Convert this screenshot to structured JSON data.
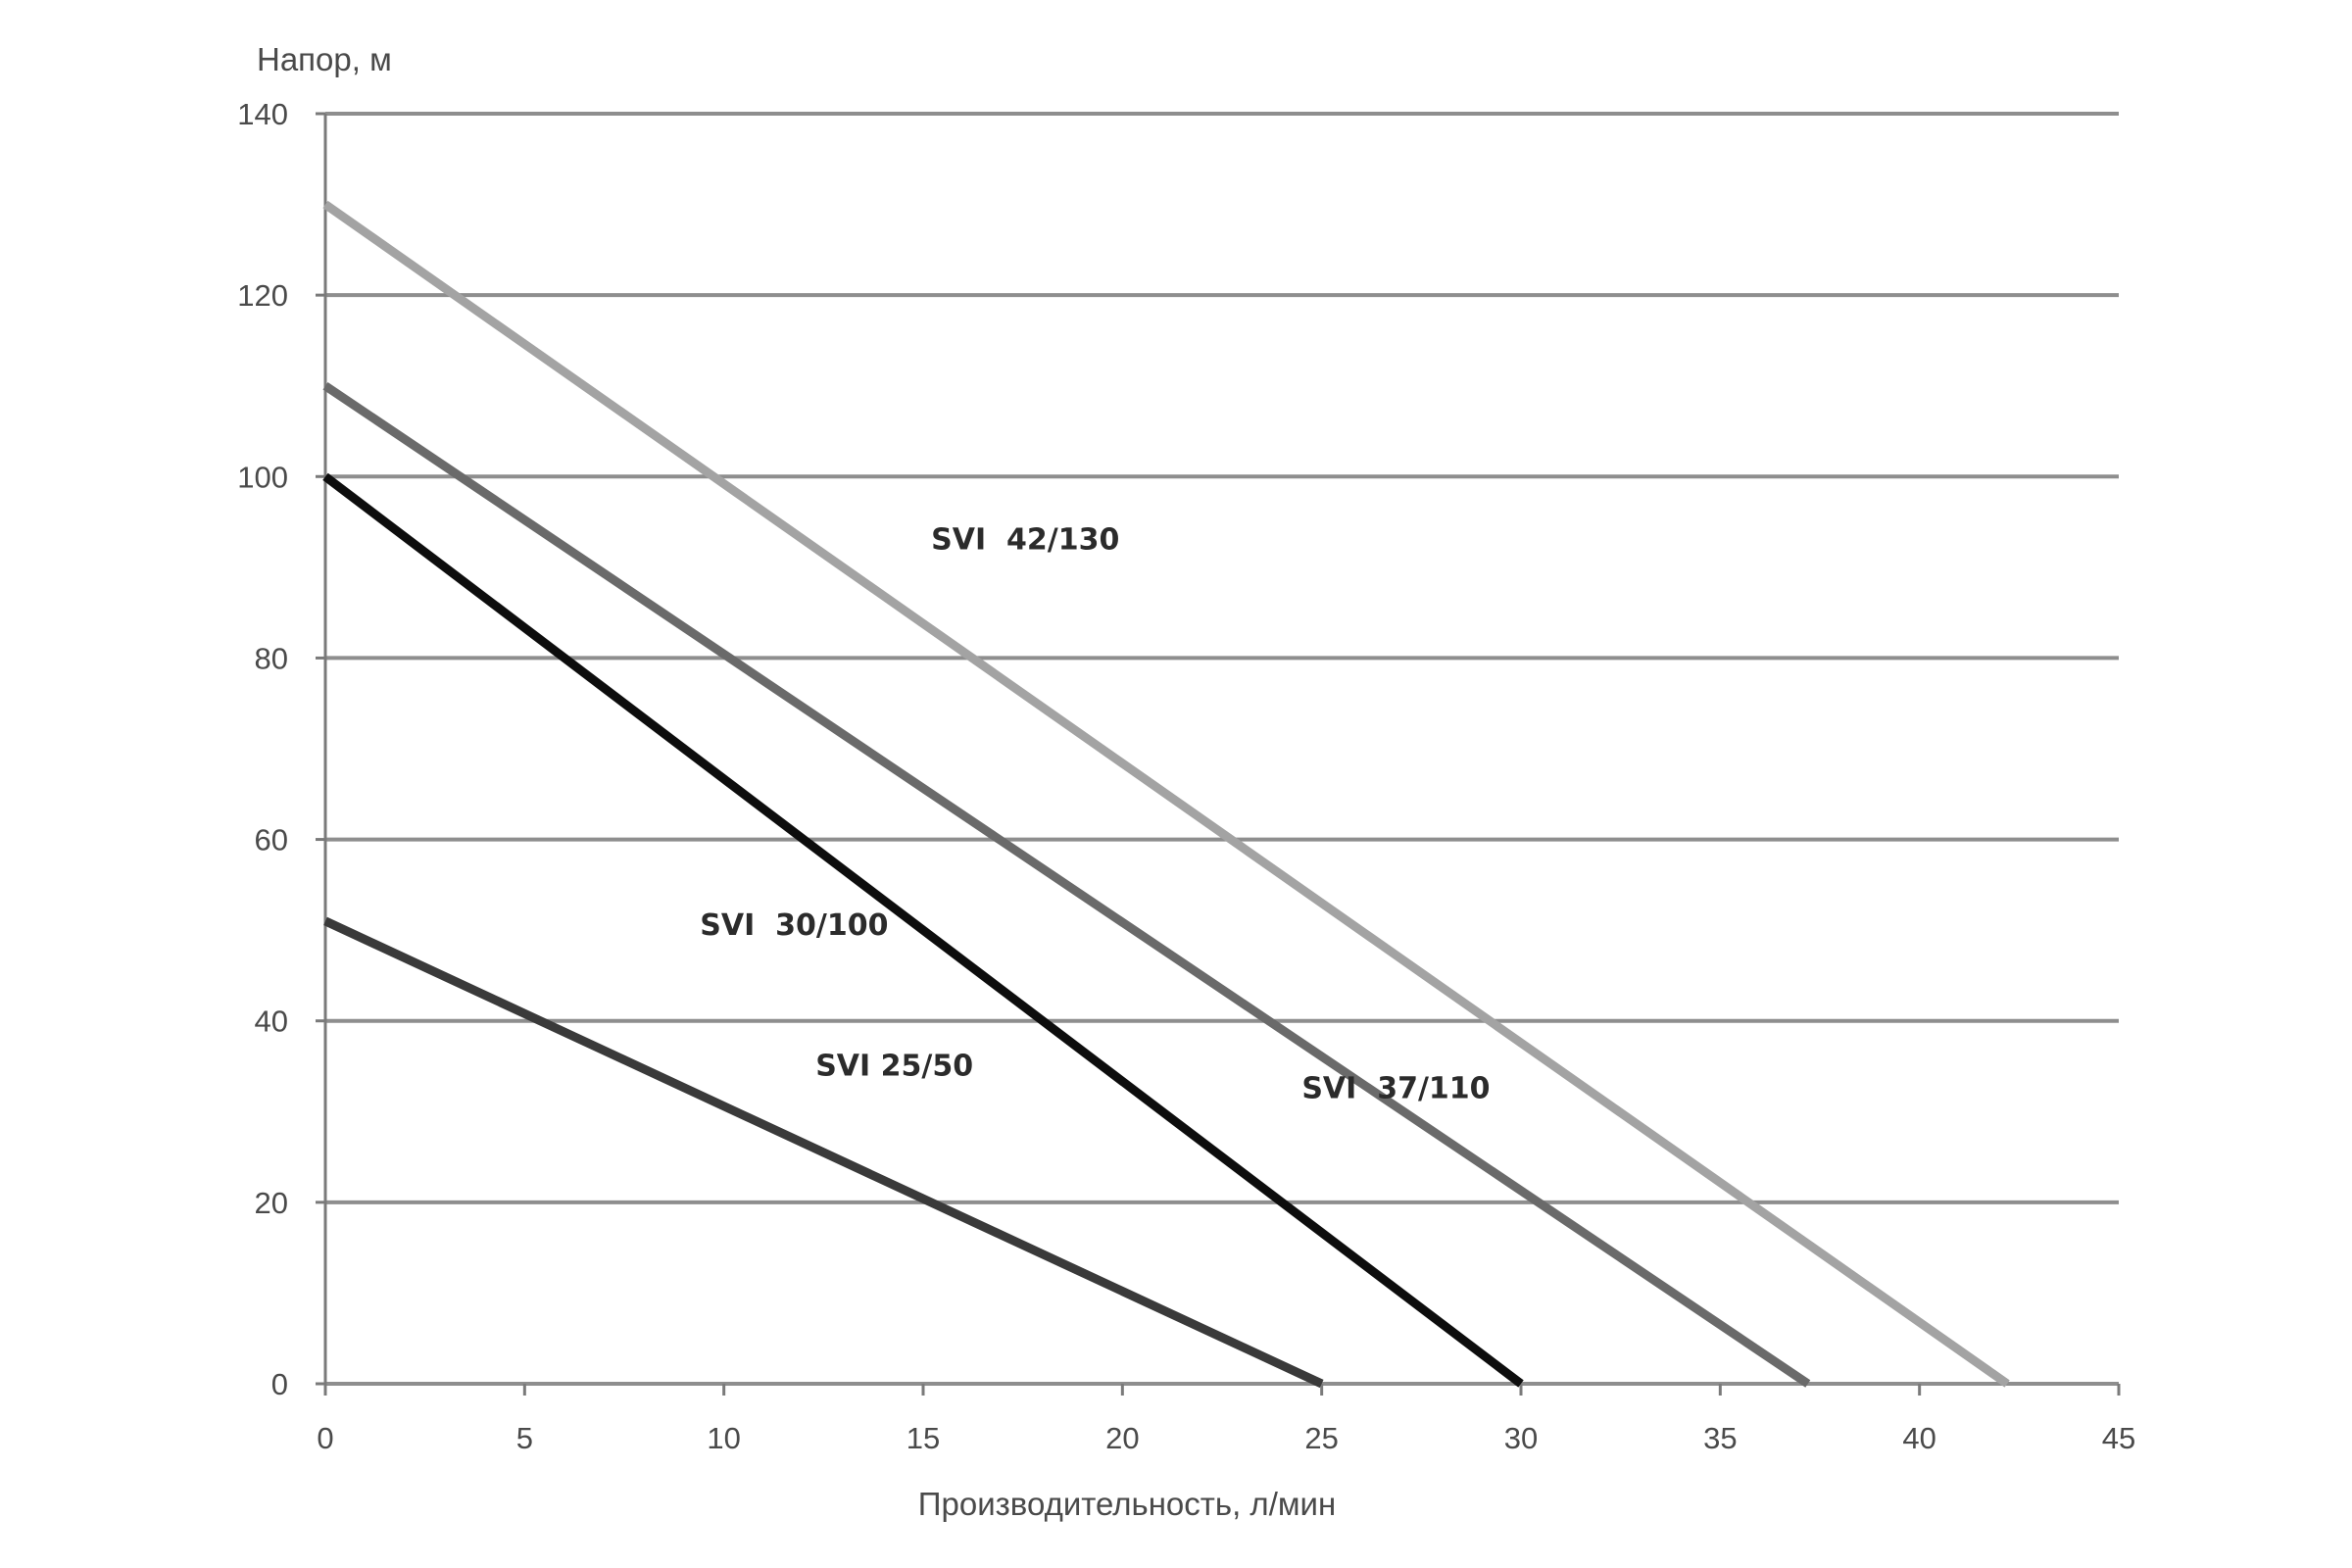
{
  "chart_data": {
    "type": "line",
    "xlabel": "Производительность, л/мин",
    "ylabel": "Напор, м",
    "xlim": [
      0,
      45
    ],
    "ylim": [
      0,
      140
    ],
    "xticks": [
      "0",
      "5",
      "10",
      "15",
      "20",
      "25",
      "30",
      "35",
      "40",
      "45"
    ],
    "yticks": [
      "0",
      "20",
      "40",
      "60",
      "80",
      "100",
      "120",
      "140"
    ],
    "grid": "horizontal",
    "legend": "none",
    "series": [
      {
        "name": "SVI 25/50",
        "label": "SVI 25/50",
        "color": "#3a3a3a",
        "x": [
          0,
          25
        ],
        "y": [
          51,
          0
        ],
        "label_at": [
          12.3,
          34
        ]
      },
      {
        "name": "SVI 30/100",
        "label": "SVI  30/100",
        "color": "#0d0d0d",
        "x": [
          0,
          30
        ],
        "y": [
          100,
          0
        ],
        "label_at": [
          9.4,
          49.5
        ]
      },
      {
        "name": "SVI 37/110",
        "label": "SVI  37/110",
        "color": "#6a6a6a",
        "x": [
          0,
          37.2
        ],
        "y": [
          110,
          0
        ],
        "label_at": [
          24.5,
          31.5
        ]
      },
      {
        "name": "SVI 42/130",
        "label": "SVI  42/130",
        "color": "#a3a3a3",
        "x": [
          0,
          42.2
        ],
        "y": [
          130,
          0
        ],
        "label_at": [
          15.2,
          92
        ]
      }
    ]
  }
}
